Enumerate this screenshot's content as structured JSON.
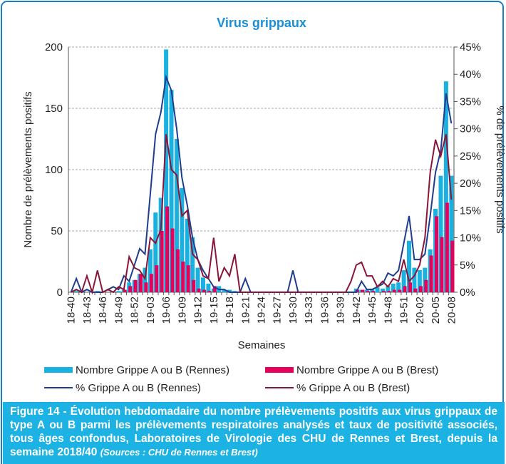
{
  "chart_data": {
    "type": "bar",
    "title": "Virus grippaux",
    "xlabel": "Semaines",
    "ylabel": "Nombre de prélèvements positifs",
    "y2label": "% de prélèvements positifs",
    "categories": [
      "18-40",
      null,
      null,
      "18-43",
      null,
      null,
      "18-46",
      null,
      null,
      "18-49",
      null,
      null,
      "18-52",
      null,
      null,
      "19-03",
      null,
      null,
      "19-06",
      null,
      null,
      "19-09",
      null,
      null,
      "19-12",
      null,
      null,
      "19-15",
      null,
      null,
      "19-18",
      null,
      null,
      "19-21",
      null,
      null,
      "19-24",
      null,
      null,
      "19-27",
      null,
      null,
      "19-30",
      null,
      null,
      "19-33",
      null,
      null,
      "19-36",
      null,
      null,
      "19-39",
      null,
      null,
      "19-42",
      null,
      null,
      "19-45",
      null,
      null,
      "19-48",
      null,
      null,
      "19-51",
      null,
      null,
      "20-02",
      null,
      null,
      "20-05",
      null,
      null,
      "20-08"
    ],
    "ylim": [
      0,
      200
    ],
    "yticks": [
      0,
      50,
      100,
      150,
      200
    ],
    "grid": true,
    "y2lim": [
      0,
      45
    ],
    "y2ticks": [
      {
        "value": 0,
        "label": "0%"
      },
      {
        "value": 5,
        "label": "5%"
      },
      {
        "value": 10,
        "label": "10%"
      },
      {
        "value": 15,
        "label": "15%"
      },
      {
        "value": 20,
        "label": "20%"
      },
      {
        "value": 25,
        "label": "25%"
      },
      {
        "value": 30,
        "label": "30%"
      },
      {
        "value": 35,
        "label": "35%"
      },
      {
        "value": 40,
        "label": "40%"
      },
      {
        "value": 45,
        "label": "45%"
      }
    ],
    "series": [
      {
        "name": "Nombre Grippe A ou B (Rennes)",
        "type": "bar",
        "color": "#1ab0e0",
        "values": [
          0,
          1,
          0,
          0,
          0,
          1,
          0,
          0,
          1,
          1,
          2,
          8,
          10,
          15,
          20,
          35,
          65,
          77,
          198,
          165,
          125,
          85,
          60,
          45,
          20,
          12,
          7,
          3,
          5,
          2,
          2,
          1,
          0,
          0,
          0,
          0,
          0,
          0,
          0,
          0,
          0,
          0,
          0,
          0,
          0,
          0,
          0,
          0,
          0,
          0,
          0,
          0,
          0,
          0,
          3,
          2,
          2,
          3,
          4,
          3,
          5,
          7,
          8,
          18,
          42,
          20,
          18,
          20,
          35,
          68,
          95,
          172,
          95
        ]
      },
      {
        "name": "Nombre Grippe A ou B (Brest)",
        "type": "bar",
        "color": "#e5005a",
        "values": [
          0,
          0,
          0,
          0,
          0,
          0,
          0,
          0,
          0,
          0,
          2,
          5,
          10,
          15,
          8,
          15,
          22,
          50,
          70,
          52,
          35,
          25,
          22,
          10,
          3,
          2,
          1,
          5,
          0,
          0,
          0,
          0,
          0,
          0,
          0,
          0,
          0,
          0,
          0,
          0,
          0,
          0,
          0,
          0,
          0,
          0,
          0,
          0,
          0,
          0,
          0,
          0,
          0,
          0,
          2,
          2,
          1,
          1,
          0,
          1,
          1,
          2,
          2,
          5,
          8,
          3,
          5,
          10,
          30,
          62,
          45,
          73,
          42
        ]
      },
      {
        "name": "% Grippe A ou B (Rennes)",
        "type": "line",
        "axis": "y2",
        "color": "#1f3d8f",
        "values": [
          0,
          2.5,
          0,
          0.5,
          0,
          0,
          0,
          0.5,
          1,
          0.5,
          3,
          2,
          5,
          8,
          7,
          18,
          29,
          33,
          39.5,
          37,
          30,
          21,
          16,
          10,
          6,
          4,
          2.5,
          1,
          0.5,
          0.5,
          0,
          0,
          0,
          2.5,
          0,
          0,
          0,
          0,
          0,
          0,
          0,
          0,
          4,
          0,
          0,
          0,
          0,
          0,
          0,
          0,
          0,
          0,
          0,
          0,
          0,
          2,
          0.5,
          0.5,
          1,
          1.5,
          3.5,
          3,
          4,
          9,
          14,
          6,
          6,
          7,
          14,
          22,
          26,
          36.5,
          31
        ]
      },
      {
        "name": "% Grippe A ou B (Brest)",
        "type": "line",
        "axis": "y2",
        "color": "#8a1538",
        "values": [
          0,
          0.5,
          0,
          3,
          0,
          4,
          0,
          0.5,
          0,
          1,
          0.5,
          6.5,
          4.5,
          4,
          2.5,
          10,
          9,
          11.5,
          29,
          22.5,
          21.5,
          14,
          15,
          7,
          6,
          3,
          2.5,
          10,
          2,
          4.5,
          3,
          7,
          0,
          0,
          0,
          0,
          0,
          0,
          0,
          0,
          0,
          0,
          0,
          0,
          0,
          0,
          0,
          0,
          0,
          0,
          0,
          0,
          0,
          2,
          5,
          5.5,
          3,
          3,
          1,
          2,
          1,
          2.5,
          2,
          6,
          2,
          3,
          5,
          10,
          22,
          28,
          25,
          29,
          17
        ]
      }
    ]
  },
  "caption": "Figure 14 - Évolution hebdomadaire du nombre prélèvements positifs aux virus grippaux de type A ou B parmi les prélèvements respiratoires analysés et taux de positivité associés, tous âges confondus, Laboratoires de Virologie des CHU de Rennes et Brest, depuis la semaine 2018/40",
  "caption_source": "(Sources : CHU de Rennes et Brest)"
}
